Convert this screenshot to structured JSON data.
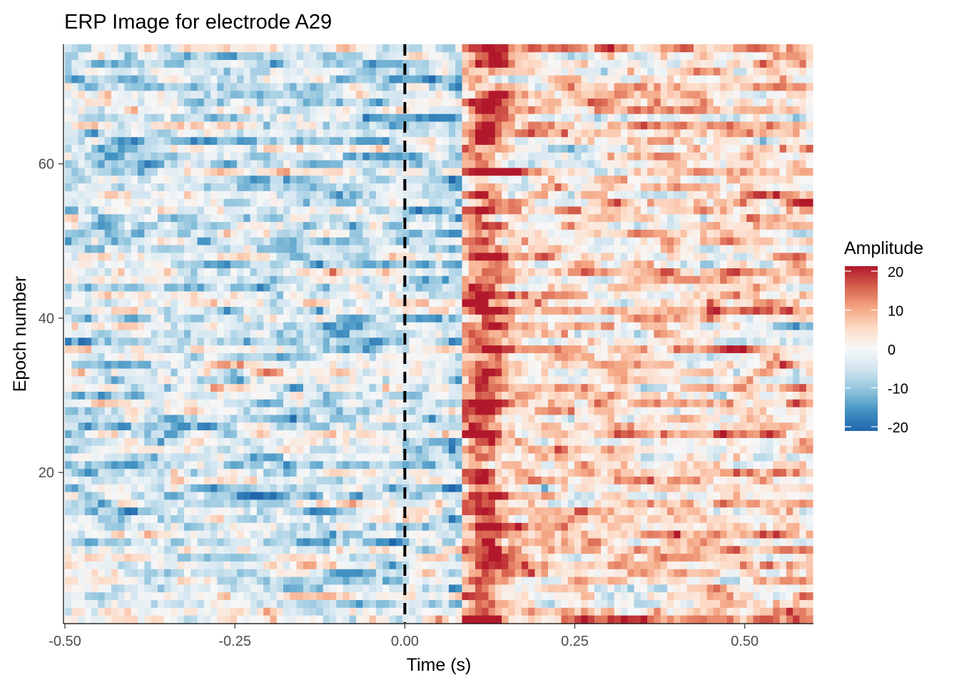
{
  "chart_data": {
    "type": "heatmap",
    "title": "ERP Image for electrode A29",
    "xlabel": "Time (s)",
    "ylabel": "Epoch number",
    "xlim": [
      -0.5,
      0.6
    ],
    "ylim": [
      1,
      75
    ],
    "x_ticks": [
      -0.5,
      -0.25,
      0.0,
      0.25,
      0.5
    ],
    "x_tick_labels": [
      "-0.50",
      "-0.25",
      "0.00",
      "0.25",
      "0.50"
    ],
    "y_ticks": [
      20,
      40,
      60
    ],
    "y_tick_labels": [
      "20",
      "40",
      "60"
    ],
    "n_epochs": 75,
    "time_step": 0.00977,
    "event_marker": {
      "x": 0.0,
      "style": "dashed",
      "color": "#000000"
    },
    "grid": false,
    "legend": {
      "title": "Amplitude",
      "placement": "right",
      "range": [
        -20,
        20
      ],
      "ticks": [
        20,
        10,
        0,
        -10,
        -20
      ],
      "tick_labels": [
        "20",
        "10",
        "0",
        "-10",
        "-20"
      ],
      "colors": [
        "#2166ac",
        "#4393c3",
        "#92c5de",
        "#d1e5f0",
        "#f7f7f7",
        "#fddbc7",
        "#f4a582",
        "#d6604d",
        "#b2182b"
      ]
    },
    "pattern_description_values": {
      "prestimulus_mean": -3.5,
      "p100_peak_time_range": [
        0.09,
        0.15
      ],
      "p100_peak_amplitude": 13,
      "late_window_mean": 5
    }
  }
}
